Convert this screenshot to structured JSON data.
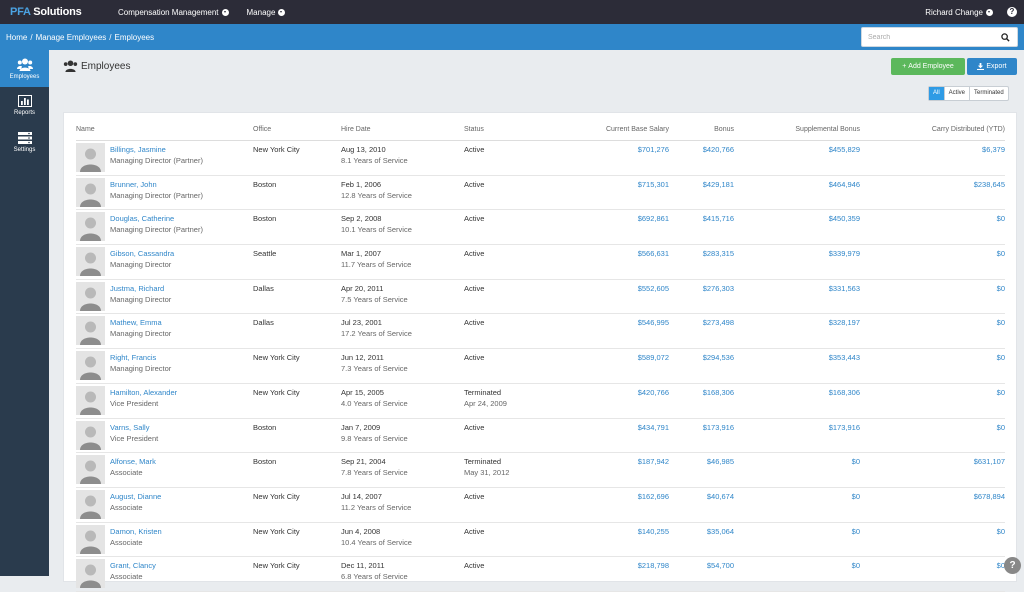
{
  "app": {
    "logo_prefix": "PFA",
    "logo_suffix": " Solutions",
    "nav": [
      {
        "label": "Compensation Management"
      },
      {
        "label": "Manage"
      }
    ],
    "user_label": "Richard Change",
    "help_label": "?"
  },
  "breadcrumb": [
    "Home",
    "/",
    "Manage Employees",
    "/",
    "Employees"
  ],
  "search": {
    "placeholder": "Search",
    "value": ""
  },
  "sidebar": {
    "items": [
      {
        "label": "Employees",
        "icon": "users-icon",
        "active": true
      },
      {
        "label": "Reports",
        "icon": "bar-chart-icon",
        "active": false
      },
      {
        "label": "Settings",
        "icon": "settings-stack-icon",
        "active": false
      }
    ]
  },
  "page": {
    "title": "Employees",
    "add_label": "Add Employee",
    "export_label": "Export",
    "filters": [
      "All",
      "Active",
      "Terminated"
    ],
    "active_filter": "All"
  },
  "table": {
    "columns": [
      "Name",
      "Office",
      "Hire Date",
      "Status",
      "Current Base Salary",
      "Bonus",
      "Supplemental Bonus",
      "Carry Distributed (YTD)"
    ],
    "rows": [
      {
        "name": "Billings, Jasmine",
        "title": "Managing Director (Partner)",
        "office": "New York City",
        "hire": "Aug 13, 2010",
        "years": "8.1 Years of Service",
        "status": "Active",
        "status_date": "",
        "salary": "$701,276",
        "bonus": "$420,766",
        "supp": "$455,829",
        "carry": "$6,379"
      },
      {
        "name": "Brunner, John",
        "title": "Managing Director (Partner)",
        "office": "Boston",
        "hire": "Feb 1, 2006",
        "years": "12.8 Years of Service",
        "status": "Active",
        "status_date": "",
        "salary": "$715,301",
        "bonus": "$429,181",
        "supp": "$464,946",
        "carry": "$238,645"
      },
      {
        "name": "Douglas, Catherine",
        "title": "Managing Director (Partner)",
        "office": "Boston",
        "hire": "Sep 2, 2008",
        "years": "10.1 Years of Service",
        "status": "Active",
        "status_date": "",
        "salary": "$692,861",
        "bonus": "$415,716",
        "supp": "$450,359",
        "carry": "$0"
      },
      {
        "name": "Gibson, Cassandra",
        "title": "Managing Director",
        "office": "Seattle",
        "hire": "Mar 1, 2007",
        "years": "11.7 Years of Service",
        "status": "Active",
        "status_date": "",
        "salary": "$566,631",
        "bonus": "$283,315",
        "supp": "$339,979",
        "carry": "$0"
      },
      {
        "name": "Justma, Richard",
        "title": "Managing Director",
        "office": "Dallas",
        "hire": "Apr 20, 2011",
        "years": "7.5 Years of Service",
        "status": "Active",
        "status_date": "",
        "salary": "$552,605",
        "bonus": "$276,303",
        "supp": "$331,563",
        "carry": "$0"
      },
      {
        "name": "Mathew, Emma",
        "title": "Managing Director",
        "office": "Dallas",
        "hire": "Jul 23, 2001",
        "years": "17.2 Years of Service",
        "status": "Active",
        "status_date": "",
        "salary": "$546,995",
        "bonus": "$273,498",
        "supp": "$328,197",
        "carry": "$0"
      },
      {
        "name": "Right, Francis",
        "title": "Managing Director",
        "office": "New York City",
        "hire": "Jun 12, 2011",
        "years": "7.3 Years of Service",
        "status": "Active",
        "status_date": "",
        "salary": "$589,072",
        "bonus": "$294,536",
        "supp": "$353,443",
        "carry": "$0"
      },
      {
        "name": "Hamilton, Alexander",
        "title": "Vice President",
        "office": "New York City",
        "hire": "Apr 15, 2005",
        "years": "4.0 Years of Service",
        "status": "Terminated",
        "status_date": "Apr 24, 2009",
        "salary": "$420,766",
        "bonus": "$168,306",
        "supp": "$168,306",
        "carry": "$0"
      },
      {
        "name": "Varns, Sally",
        "title": "Vice President",
        "office": "Boston",
        "hire": "Jan 7, 2009",
        "years": "9.8 Years of Service",
        "status": "Active",
        "status_date": "",
        "salary": "$434,791",
        "bonus": "$173,916",
        "supp": "$173,916",
        "carry": "$0"
      },
      {
        "name": "Alfonse, Mark",
        "title": "Associate",
        "office": "Boston",
        "hire": "Sep 21, 2004",
        "years": "7.8 Years of Service",
        "status": "Terminated",
        "status_date": "May 31, 2012",
        "salary": "$187,942",
        "bonus": "$46,985",
        "supp": "$0",
        "carry": "$631,107"
      },
      {
        "name": "August, Dianne",
        "title": "Associate",
        "office": "New York City",
        "hire": "Jul 14, 2007",
        "years": "11.2 Years of Service",
        "status": "Active",
        "status_date": "",
        "salary": "$162,696",
        "bonus": "$40,674",
        "supp": "$0",
        "carry": "$678,894"
      },
      {
        "name": "Damon, Kristen",
        "title": "Associate",
        "office": "New York City",
        "hire": "Jun 4, 2008",
        "years": "10.4 Years of Service",
        "status": "Active",
        "status_date": "",
        "salary": "$140,255",
        "bonus": "$35,064",
        "supp": "$0",
        "carry": "$0"
      },
      {
        "name": "Grant, Clancy",
        "title": "Associate",
        "office": "New York City",
        "hire": "Dec 11, 2011",
        "years": "6.8 Years of Service",
        "status": "Active",
        "status_date": "",
        "salary": "$218,798",
        "bonus": "$54,700",
        "supp": "$0",
        "carry": "$0"
      }
    ]
  },
  "colors": {
    "topbar": "#2c2c38",
    "accent": "#2f86c9",
    "sidebar": "#2a3b4d",
    "add_button": "#5cb85c"
  }
}
